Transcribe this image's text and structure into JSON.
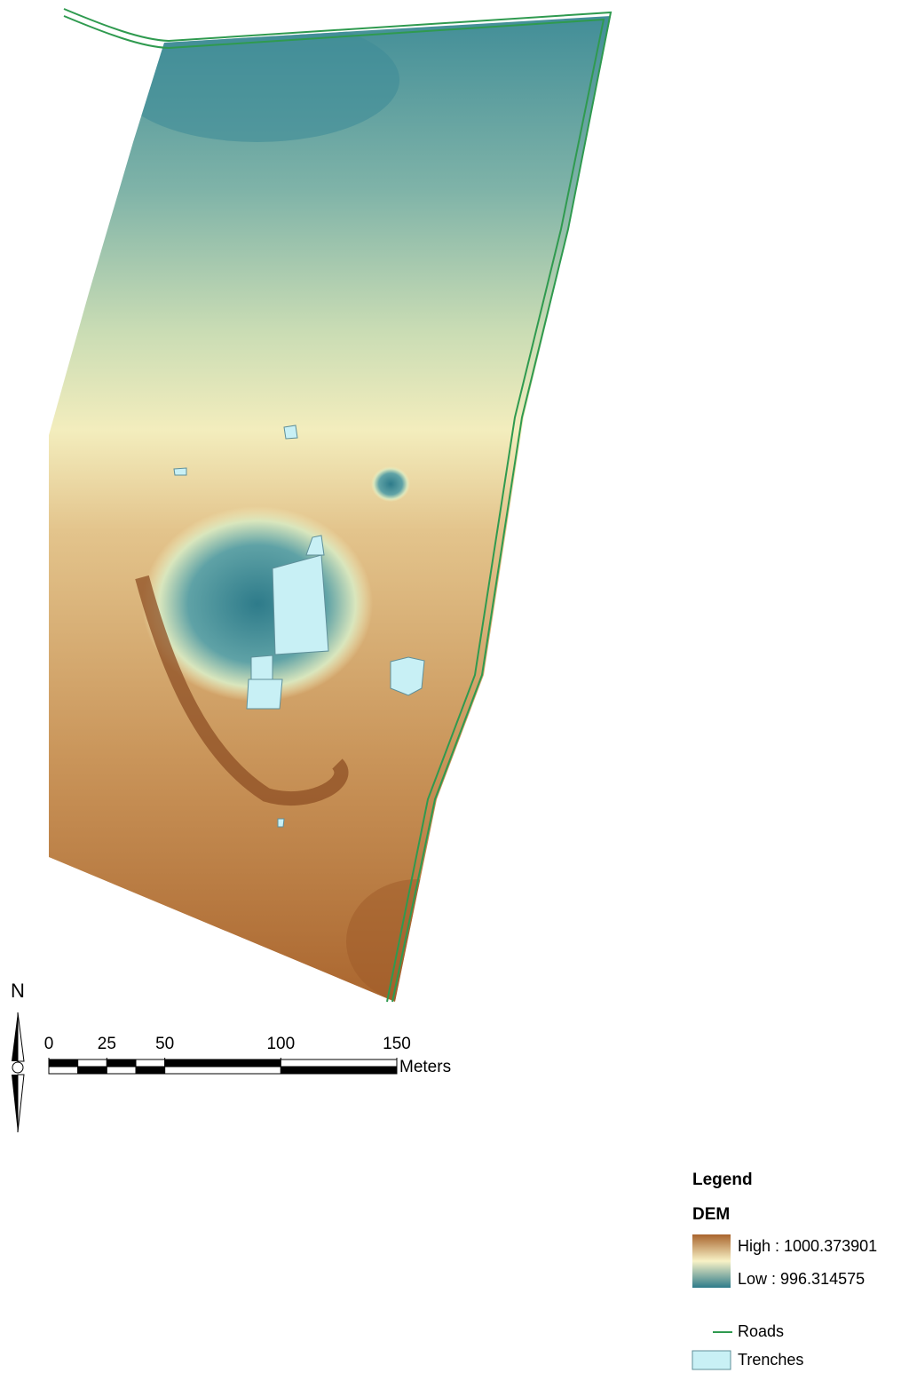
{
  "north_arrow": {
    "label": "N"
  },
  "scale_bar": {
    "ticks": [
      0,
      25,
      50,
      100,
      150
    ],
    "unit": "Meters"
  },
  "legend": {
    "title": "Legend",
    "layers": [
      {
        "name": "DEM",
        "high": "High : 1000.373901",
        "low": "Low : 996.314575"
      },
      {
        "name": "Roads"
      },
      {
        "name": "Trenches"
      }
    ]
  }
}
